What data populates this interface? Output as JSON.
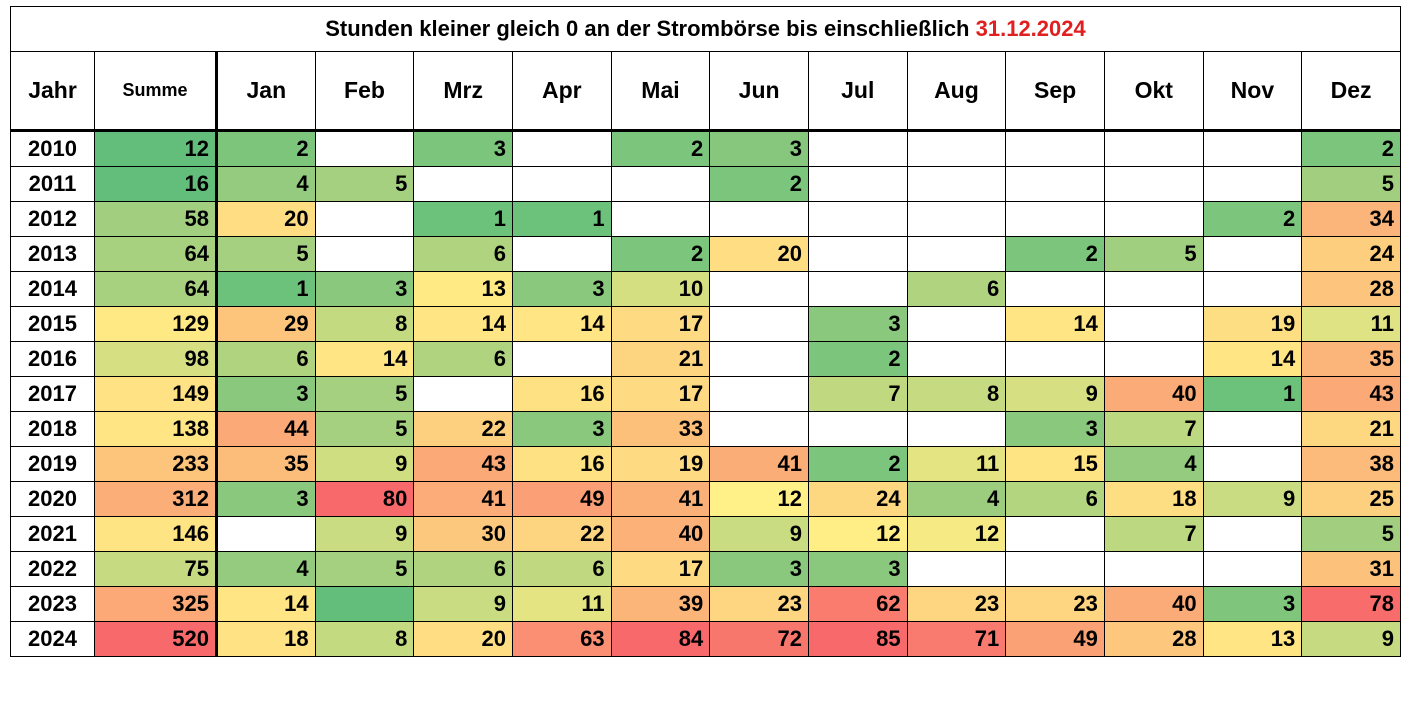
{
  "title": {
    "text": "Stunden kleiner gleich  0  an der Strombörse bis einschließlich",
    "date": "31.12.2024"
  },
  "chart_data": {
    "type": "heatmap",
    "title": "Stunden kleiner gleich  0  an der Strombörse bis einschließlich 31.12.2024",
    "columns": [
      "Jahr",
      "Summe",
      "Jan",
      "Feb",
      "Mrz",
      "Apr",
      "Mai",
      "Jun",
      "Jul",
      "Aug",
      "Sep",
      "Okt",
      "Nov",
      "Dez"
    ],
    "rows": [
      {
        "year": "2010",
        "sum": 12,
        "months": [
          2,
          null,
          3,
          null,
          2,
          3,
          null,
          null,
          null,
          null,
          null,
          2
        ]
      },
      {
        "year": "2011",
        "sum": 16,
        "months": [
          4,
          5,
          null,
          null,
          null,
          2,
          null,
          null,
          null,
          null,
          null,
          5
        ]
      },
      {
        "year": "2012",
        "sum": 58,
        "months": [
          20,
          null,
          1,
          1,
          null,
          null,
          null,
          null,
          null,
          null,
          2,
          34
        ]
      },
      {
        "year": "2013",
        "sum": 64,
        "months": [
          5,
          null,
          6,
          null,
          2,
          20,
          null,
          null,
          2,
          5,
          null,
          24
        ]
      },
      {
        "year": "2014",
        "sum": 64,
        "months": [
          1,
          3,
          13,
          3,
          10,
          null,
          null,
          6,
          null,
          null,
          null,
          28
        ]
      },
      {
        "year": "2015",
        "sum": 129,
        "months": [
          29,
          8,
          14,
          14,
          17,
          null,
          3,
          null,
          14,
          null,
          19,
          11
        ]
      },
      {
        "year": "2016",
        "sum": 98,
        "months": [
          6,
          14,
          6,
          null,
          21,
          null,
          2,
          null,
          null,
          null,
          14,
          35
        ]
      },
      {
        "year": "2017",
        "sum": 149,
        "months": [
          3,
          5,
          null,
          16,
          17,
          null,
          7,
          8,
          9,
          40,
          1,
          43
        ]
      },
      {
        "year": "2018",
        "sum": 138,
        "months": [
          44,
          5,
          22,
          3,
          33,
          null,
          null,
          null,
          3,
          7,
          null,
          21
        ]
      },
      {
        "year": "2019",
        "sum": 233,
        "months": [
          35,
          9,
          43,
          16,
          19,
          41,
          2,
          11,
          15,
          4,
          null,
          38
        ]
      },
      {
        "year": "2020",
        "sum": 312,
        "months": [
          3,
          80,
          41,
          49,
          41,
          12,
          24,
          4,
          6,
          18,
          9,
          25
        ]
      },
      {
        "year": "2021",
        "sum": 146,
        "months": [
          null,
          9,
          30,
          22,
          40,
          9,
          12,
          12,
          null,
          7,
          null,
          5
        ]
      },
      {
        "year": "2022",
        "sum": 75,
        "months": [
          4,
          5,
          6,
          6,
          17,
          3,
          3,
          null,
          null,
          null,
          null,
          31
        ]
      },
      {
        "year": "2023",
        "sum": 325,
        "months": [
          14,
          "",
          9,
          11,
          39,
          23,
          62,
          23,
          23,
          40,
          3,
          78
        ]
      },
      {
        "year": "2024",
        "sum": 520,
        "months": [
          18,
          8,
          20,
          63,
          84,
          72,
          85,
          71,
          49,
          28,
          13,
          9
        ]
      }
    ],
    "colors": {
      "2010": [
        "#63be7b",
        "#7ec57c",
        null,
        "#7cc57c",
        null,
        "#7cc57c",
        "#86c77d",
        null,
        null,
        null,
        null,
        null,
        "#7cc57c"
      ],
      "2011": [
        "#63be7b",
        "#94cb7e",
        "#a4d07f",
        null,
        null,
        null,
        "#7cc57c",
        null,
        null,
        null,
        null,
        null,
        "#a2cf7f"
      ],
      "2012": [
        "#a2cf7f",
        "#ffde83",
        null,
        "#6cc17b",
        "#6cc17b",
        null,
        null,
        null,
        null,
        null,
        null,
        "#7cc57c",
        "#fbb47a"
      ],
      "2013": [
        "#a8d17f",
        "#a4d07f",
        null,
        "#b0d380",
        null,
        "#7cc57c",
        "#ffde83",
        null,
        null,
        "#7cc57c",
        "#a0cf7f",
        null,
        "#fdce7e"
      ],
      "2014": [
        "#a8d17f",
        "#6cc17b",
        "#8ac87d",
        "#ffea84",
        "#8ac87d",
        "#d4df82",
        null,
        null,
        "#b0d380",
        null,
        null,
        null,
        "#fcc47c"
      ],
      "2015": [
        "#ffe984",
        "#fdc47c",
        "#c4da81",
        "#ffe584",
        "#ffe584",
        "#fedb82",
        null,
        "#8ac87d",
        null,
        "#ffe584",
        null,
        "#fede83",
        "#e0e383"
      ],
      "2016": [
        "#d6e082",
        "#b0d380",
        "#ffe584",
        "#b0d380",
        null,
        "#fdd581",
        null,
        "#7cc57c",
        null,
        null,
        null,
        "#ffe584",
        "#fbb47a"
      ],
      "2017": [
        "#ffe283",
        "#8ac87d",
        "#a4d07f",
        null,
        "#fee183",
        "#fedb82",
        null,
        "#c0d981",
        "#c6db81",
        "#d6e082",
        "#fbab77",
        "#6cc17b",
        "#fba977"
      ],
      "2018": [
        "#ffe584",
        "#fba977",
        "#a4d07f",
        "#fdd07f",
        "#8ac87d",
        "#fdc07b",
        null,
        null,
        null,
        "#8ac87d",
        "#bcd881",
        null,
        "#fed881"
      ],
      "2019": [
        "#fdc47c",
        "#fcbd7b",
        "#d0de82",
        "#fba977",
        "#fee183",
        "#fedb82",
        "#fbad78",
        "#7cc57c",
        "#e4e483",
        "#ffe484",
        "#94cb7e",
        null,
        "#fcbb7a"
      ],
      "2020": [
        "#fcae78",
        "#8ac87d",
        "#f8696b",
        "#fbac78",
        "#fba076",
        "#fbb078",
        "#fff087",
        "#fed781",
        "#9ccd7e",
        "#b4d580",
        "#fede83",
        "#cadc81",
        "#fdd07f"
      ],
      "2021": [
        "#ffe484",
        null,
        "#cadc81",
        "#fcc87d",
        "#fdd581",
        "#fbb178",
        "#cadc81",
        "#ffed86",
        "#f6ea85",
        null,
        "#bcd881",
        null,
        "#a2cf7f"
      ],
      "2022": [
        "#c6db81",
        "#94cb7e",
        "#a4d07f",
        "#b0d380",
        "#c0d981",
        "#fedb82",
        "#8ac87d",
        "#8ac87d",
        null,
        null,
        null,
        null,
        "#fcc27c"
      ],
      "2023": [
        "#fca977",
        "#ffe584",
        "#63be7b",
        "#cadc81",
        "#e4e483",
        "#fcb579",
        "#fed581",
        "#f97c6e",
        "#fed581",
        "#fed581",
        "#fbab77",
        "#80c57c",
        "#f86c6b"
      ],
      "2024": [
        "#f8696b",
        "#ffe283",
        "#c4da81",
        "#ffde83",
        "#fa8f73",
        "#f8696b",
        "#f8776d",
        "#f8696b",
        "#f97a6e",
        "#fba176",
        "#fdc87d",
        "#ffe584",
        "#c6db81"
      ]
    }
  }
}
